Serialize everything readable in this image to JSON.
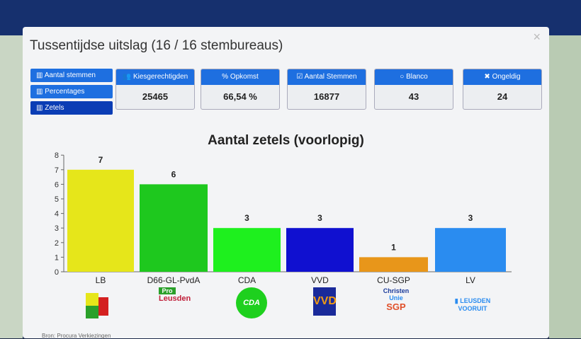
{
  "modal": {
    "title": "Tussentijdse uitslag (16 / 16 stembureaus)",
    "close": "×"
  },
  "side_buttons": [
    {
      "label": "Aantal stemmen",
      "icon": "bar-chart-icon"
    },
    {
      "label": "Percentages",
      "icon": "bar-chart-icon"
    },
    {
      "label": "Zetels",
      "icon": "bar-chart-icon",
      "active": true
    }
  ],
  "cards": [
    {
      "label": "Kiesgerechtigden",
      "icon": "users-icon",
      "glyph": "👥",
      "value": "25465"
    },
    {
      "label": "Opkomst",
      "icon": "percent-icon",
      "glyph": "%",
      "value": "66,54 %"
    },
    {
      "label": "Aantal Stemmen",
      "icon": "checkbox-icon",
      "glyph": "☑",
      "value": "16877"
    },
    {
      "label": "Blanco",
      "icon": "circle-icon",
      "glyph": "○",
      "value": "43"
    },
    {
      "label": "Ongeldig",
      "icon": "x-icon",
      "glyph": "✖",
      "value": "24"
    }
  ],
  "chart_data": {
    "type": "bar",
    "title": "Aantal zetels (voorlopig)",
    "categories": [
      "LB",
      "D66-GL-PvdA",
      "CDA",
      "VVD",
      "CU-SGP",
      "LV"
    ],
    "values": [
      7,
      6,
      3,
      3,
      1,
      3
    ],
    "colors": [
      "#e6e61a",
      "#1ec81e",
      "#1ef01e",
      "#1010d0",
      "#e8961a",
      "#2a8cf0"
    ],
    "ylim": [
      0,
      8
    ],
    "yticks": [
      0,
      1,
      2,
      3,
      4,
      5,
      6,
      7,
      8
    ],
    "grid": false
  },
  "logos": [
    "LB",
    "Pro Leusden",
    "CDA",
    "VVD",
    "ChristenUnie SGP",
    "Leusden Vooruit"
  ],
  "footer": {
    "source": "Bron: Procura Verkiezingen"
  }
}
